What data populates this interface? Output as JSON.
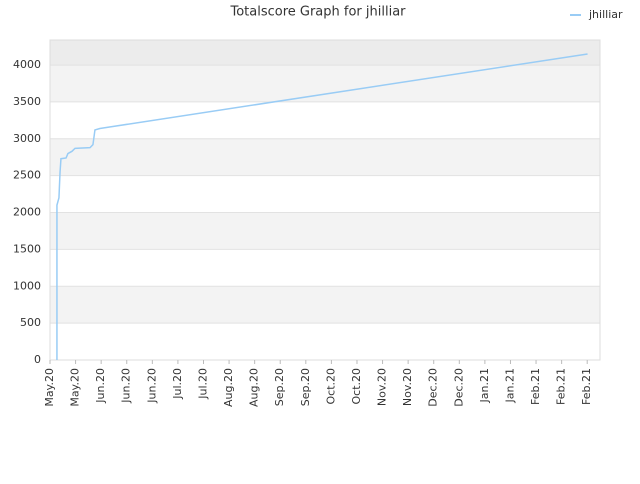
{
  "chart_data": {
    "type": "line",
    "title": "Totalscore Graph for jhilliar",
    "x": [
      3.8,
      3.8,
      4.9,
      5.5,
      6.0,
      8.8,
      9.8,
      12.0,
      13.7,
      21.9,
      23.5,
      24.6,
      27.3,
      294.2
    ],
    "series": [
      {
        "name": "jhilliar",
        "color": "#99ccf5",
        "values": [
          0,
          2100,
          2200,
          2550,
          2730,
          2740,
          2800,
          2830,
          2870,
          2880,
          2920,
          3120,
          3140,
          4150
        ]
      }
    ],
    "xlim": [
      0,
      301
    ],
    "xticks": [
      {
        "value": 0,
        "label": "May.20"
      },
      {
        "value": 14,
        "label": "May.20"
      },
      {
        "value": 28,
        "label": "Jun.20"
      },
      {
        "value": 42,
        "label": "Jun.20"
      },
      {
        "value": 56,
        "label": "Jun.20"
      },
      {
        "value": 70,
        "label": "Jul.20"
      },
      {
        "value": 84,
        "label": "Jul.20"
      },
      {
        "value": 98,
        "label": "Aug.20"
      },
      {
        "value": 112,
        "label": "Aug.20"
      },
      {
        "value": 126,
        "label": "Sep.20"
      },
      {
        "value": 140,
        "label": "Sep.20"
      },
      {
        "value": 154,
        "label": "Oct.20"
      },
      {
        "value": 168,
        "label": "Oct.20"
      },
      {
        "value": 182,
        "label": "Nov.20"
      },
      {
        "value": 196,
        "label": "Nov.20"
      },
      {
        "value": 210,
        "label": "Dec.20"
      },
      {
        "value": 224,
        "label": "Dec.20"
      },
      {
        "value": 238,
        "label": "Jan.21"
      },
      {
        "value": 252,
        "label": "Jan.21"
      },
      {
        "value": 266,
        "label": "Feb.21"
      },
      {
        "value": 280,
        "label": "Feb.21"
      },
      {
        "value": 294,
        "label": "Feb.21"
      }
    ],
    "ylim": [
      0,
      4340
    ],
    "yticks": [
      0,
      500,
      1000,
      1500,
      2000,
      2500,
      3000,
      3500,
      4000
    ],
    "grid": true
  }
}
